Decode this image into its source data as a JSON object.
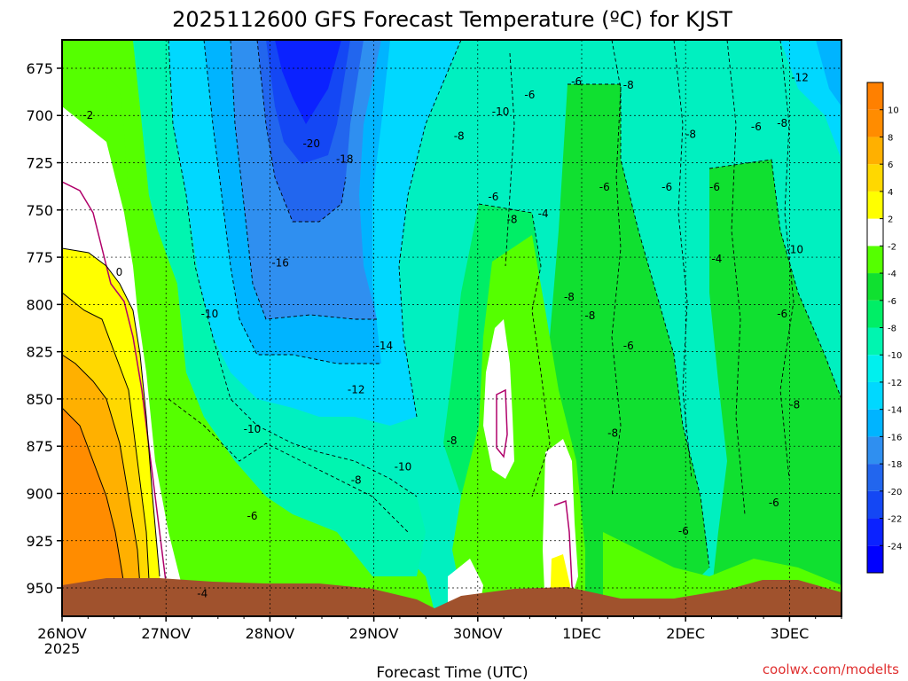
{
  "chart_data": {
    "type": "heatmap",
    "title": "2025112600 GFS Forecast Temperature (ºC) for KJST",
    "xlabel": "Forecast Time (UTC)",
    "credit": "coolwx.com/modelts",
    "y_ticks": [
      675,
      700,
      725,
      750,
      775,
      800,
      825,
      850,
      875,
      900,
      925,
      950
    ],
    "ylim": [
      965,
      660
    ],
    "x_ticks": [
      "26NOV",
      "27NOV",
      "28NOV",
      "29NOV",
      "30NOV",
      "1DEC",
      "2DEC",
      "3DEC"
    ],
    "x_year_label": "2025",
    "grid": true,
    "colorbar": {
      "levels": [
        -24,
        -22,
        -20,
        -18,
        -16,
        -14,
        -12,
        -10,
        -8,
        -6,
        -4,
        -2,
        2,
        4,
        6,
        8,
        10
      ],
      "labels": [
        "-24",
        "-22",
        "-20",
        "-18",
        "-16",
        "-14",
        "-12",
        "-10",
        "-8",
        "-6",
        "-4",
        "-2",
        "2",
        "4",
        "6",
        "8",
        "10"
      ],
      "colors": [
        "#0000ff",
        "#0b22ff",
        "#1447f4",
        "#2266ee",
        "#2f8ff0",
        "#00b4ff",
        "#00d8ff",
        "#00f0ee",
        "#00f5b0",
        "#00ee66",
        "#10e030",
        "#55ff00",
        "#ffffff",
        "#ffff00",
        "#ffd800",
        "#ffb000",
        "#ff8c00",
        "#ff8000"
      ]
    },
    "contour_labels": [
      {
        "day": 0.25,
        "p": 700,
        "text": "-2"
      },
      {
        "day": 0.55,
        "p": 783,
        "text": "0"
      },
      {
        "day": 1.35,
        "p": 953,
        "text": "-4"
      },
      {
        "day": 1.42,
        "p": 805,
        "text": "-10"
      },
      {
        "day": 1.83,
        "p": 866,
        "text": "-10"
      },
      {
        "day": 1.83,
        "p": 912,
        "text": "-6"
      },
      {
        "day": 2.1,
        "p": 778,
        "text": "-16"
      },
      {
        "day": 2.4,
        "p": 715,
        "text": "-20"
      },
      {
        "day": 2.72,
        "p": 723,
        "text": "-18"
      },
      {
        "day": 2.83,
        "p": 845,
        "text": "-12"
      },
      {
        "day": 2.83,
        "p": 893,
        "text": "-8"
      },
      {
        "day": 3.1,
        "p": 822,
        "text": "-14"
      },
      {
        "day": 3.28,
        "p": 886,
        "text": "-10"
      },
      {
        "day": 3.75,
        "p": 872,
        "text": "-8"
      },
      {
        "day": 3.82,
        "p": 711,
        "text": "-8"
      },
      {
        "day": 4.15,
        "p": 743,
        "text": "-6"
      },
      {
        "day": 4.22,
        "p": 698,
        "text": "-10"
      },
      {
        "day": 4.33,
        "p": 755,
        "text": "-8"
      },
      {
        "day": 4.5,
        "p": 689,
        "text": "-6"
      },
      {
        "day": 4.63,
        "p": 752,
        "text": "-4"
      },
      {
        "day": 4.88,
        "p": 796,
        "text": "-8"
      },
      {
        "day": 4.95,
        "p": 682,
        "text": "-6"
      },
      {
        "day": 5.08,
        "p": 806,
        "text": "-8"
      },
      {
        "day": 5.22,
        "p": 738,
        "text": "-6"
      },
      {
        "day": 5.3,
        "p": 868,
        "text": "-8"
      },
      {
        "day": 5.45,
        "p": 822,
        "text": "-6"
      },
      {
        "day": 5.45,
        "p": 684,
        "text": "-8"
      },
      {
        "day": 5.82,
        "p": 738,
        "text": "-6"
      },
      {
        "day": 5.98,
        "p": 920,
        "text": "-6"
      },
      {
        "day": 6.05,
        "p": 710,
        "text": "-8"
      },
      {
        "day": 6.28,
        "p": 738,
        "text": "-6"
      },
      {
        "day": 6.3,
        "p": 776,
        "text": "-4"
      },
      {
        "day": 6.68,
        "p": 706,
        "text": "-6"
      },
      {
        "day": 6.85,
        "p": 905,
        "text": "-6"
      },
      {
        "day": 6.93,
        "p": 805,
        "text": "-6"
      },
      {
        "day": 6.93,
        "p": 704,
        "text": "-8"
      },
      {
        "day": 7.1,
        "p": 680,
        "text": "-12"
      },
      {
        "day": 7.05,
        "p": 771,
        "text": "-10"
      },
      {
        "day": 7.05,
        "p": 853,
        "text": "-8"
      }
    ]
  }
}
